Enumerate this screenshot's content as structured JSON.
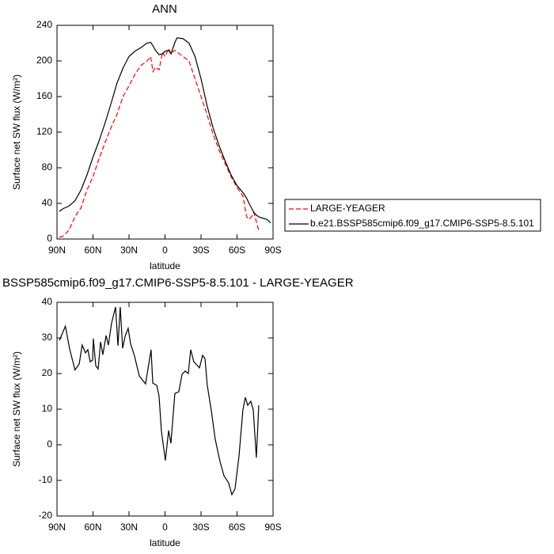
{
  "chart_data": [
    {
      "type": "line",
      "title": "ANN",
      "x_label": "latitude",
      "y_label": "Surface net SW flux (W/m²)",
      "x": [
        88,
        85,
        80,
        75,
        70,
        65,
        60,
        55,
        50,
        45,
        40,
        35,
        30,
        25,
        20,
        15,
        12,
        10,
        8,
        5,
        2,
        0,
        -3,
        -5,
        -8,
        -10,
        -15,
        -20,
        -25,
        -30,
        -35,
        -40,
        -45,
        -50,
        -55,
        -60,
        -65,
        -68,
        -70,
        -72,
        -74,
        -76,
        -78,
        -80,
        -85,
        -88
      ],
      "series": [
        {
          "name": "LARGE-YEAGER",
          "color": "#ff0000",
          "linestyle": "dashed",
          "values": [
            2,
            3,
            10,
            25,
            35,
            55,
            70,
            90,
            108,
            125,
            140,
            160,
            172,
            185,
            195,
            200,
            205,
            188,
            193,
            190,
            210,
            205,
            214,
            208,
            212,
            210,
            205,
            200,
            180,
            160,
            140,
            118,
            100,
            85,
            70,
            58,
            48,
            25,
            22,
            25,
            30,
            20,
            10,
            null,
            null,
            null
          ]
        },
        {
          "name": "b.e21.BSSP585cmip6.f09_g17.CMIP6-SSP5-8.5.101",
          "color": "#000000",
          "linestyle": "solid",
          "values": [
            31,
            34,
            37,
            43,
            55,
            72,
            92,
            110,
            130,
            152,
            175,
            192,
            205,
            211,
            215,
            220,
            221,
            217,
            212,
            207,
            208,
            211,
            212,
            208,
            220,
            226,
            225,
            220,
            205,
            180,
            150,
            125,
            105,
            88,
            72,
            60,
            52,
            46,
            40,
            35,
            30,
            27,
            25,
            24,
            22,
            18
          ]
        }
      ],
      "xlim": [
        90,
        -90
      ],
      "xticks": [
        {
          "value": 90,
          "label": "90N"
        },
        {
          "value": 60,
          "label": "60N"
        },
        {
          "value": 30,
          "label": "30N"
        },
        0,
        {
          "value": -30,
          "label": "30S"
        },
        {
          "value": -60,
          "label": "60S"
        },
        {
          "value": -90,
          "label": "90S"
        }
      ],
      "ylim": [
        0,
        240
      ],
      "yticks": [
        0,
        40,
        80,
        120,
        160,
        200,
        240
      ],
      "legend": "right"
    },
    {
      "type": "line",
      "title": "BSSP585cmip6.f09_g17.CMIP6-SSP5-8.5.101 - LARGE-YEAGER",
      "x_label": "latitude",
      "y_label": "Surface net SW flux (W/m²)",
      "x": [
        88,
        83,
        79.5,
        75,
        71.5,
        69,
        66.3,
        64.3,
        62.3,
        60.3,
        59.7,
        57.7,
        55.7,
        53.7,
        51.8,
        49.1,
        47.2,
        44.5,
        41.2,
        39.2,
        37.3,
        35.3,
        33.3,
        30.7,
        28.7,
        25.4,
        21.4,
        16.2,
        11.6,
        10.2,
        6.9,
        5,
        3,
        -0.3,
        -3,
        -4.9,
        -8.2,
        -11.5,
        -14.2,
        -16.8,
        -19.4,
        -21.4,
        -24,
        -28.7,
        -31.3,
        -33.3,
        -35.2,
        -38.5,
        -41.8,
        -45.8,
        -49.1,
        -53,
        -55.7,
        -58.3,
        -61.6,
        -64.9,
        -66.9,
        -68.9,
        -71.5,
        -73.5,
        -76.1,
        -78.1
      ],
      "series": [
        {
          "color": "#000000",
          "linestyle": "solid",
          "values": [
            29.3,
            33.3,
            27,
            21,
            22.7,
            28,
            25.8,
            26.7,
            23.3,
            23.8,
            29.8,
            22.2,
            21.3,
            28.9,
            25.3,
            30.7,
            28,
            34.2,
            38.7,
            27.8,
            38.7,
            27.1,
            30.4,
            32.7,
            28.4,
            24.9,
            19.3,
            17.1,
            26.7,
            17.3,
            16.7,
            13.8,
            3.8,
            -4.4,
            4,
            0.4,
            14.4,
            14.9,
            19.8,
            20.7,
            20,
            26.7,
            23.3,
            21.6,
            25.1,
            24.2,
            16.7,
            9.8,
            1.6,
            -4.7,
            -8.7,
            -10.7,
            -14,
            -12.4,
            -3.3,
            9.8,
            13.3,
            11.1,
            12.2,
            9.8,
            -3.6,
            11.1
          ]
        }
      ],
      "xlim": [
        90,
        -90
      ],
      "xticks": [
        {
          "value": 90,
          "label": "90N"
        },
        {
          "value": 60,
          "label": "60N"
        },
        {
          "value": 30,
          "label": "30N"
        },
        0,
        {
          "value": -30,
          "label": "30S"
        },
        {
          "value": -60,
          "label": "60S"
        },
        {
          "value": -90,
          "label": "90S"
        }
      ],
      "ylim": [
        -20,
        40
      ],
      "yticks": [
        -20,
        -10,
        0,
        10,
        20,
        30,
        40
      ]
    }
  ]
}
